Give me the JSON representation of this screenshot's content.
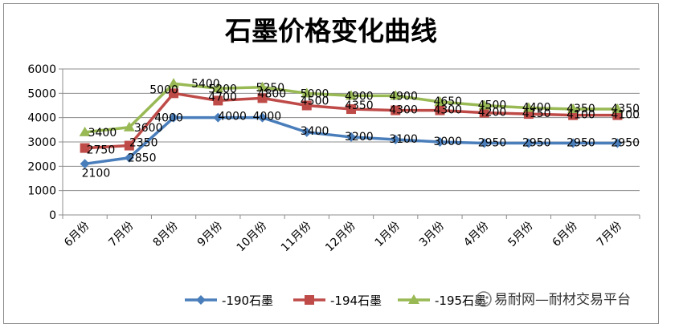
{
  "chart_data": {
    "type": "line",
    "title": "石墨价格变化曲线",
    "categories": [
      "6月份",
      "7月份",
      "8月份",
      "9月份",
      "10月份",
      "11月份",
      "12月份",
      "1月份",
      "3月份",
      "4月份",
      "5月份",
      "6月份",
      "7月份"
    ],
    "series": [
      {
        "name": "-190石墨",
        "color": "#4a7ebb",
        "marker": "diamond",
        "values": [
          2100,
          2350,
          4000,
          4000,
          4000,
          3400,
          3200,
          3100,
          3000,
          2950,
          2950,
          2950,
          2950
        ],
        "labels": [
          "2100",
          "2350",
          "4000",
          "4000",
          "4000",
          "3400",
          "3200",
          "3100",
          "3000",
          "2950",
          "2950",
          "2950",
          "2950"
        ]
      },
      {
        "name": "-194石墨",
        "color": "#be4b48",
        "marker": "square",
        "values": [
          2750,
          2850,
          5000,
          4700,
          4800,
          4500,
          4350,
          4300,
          4300,
          4200,
          4150,
          4100,
          4100
        ],
        "labels": [
          "2750",
          "2850",
          "5000",
          "4700",
          "4800",
          "4500",
          "4350",
          "4300",
          "4300",
          "4200",
          "4150",
          "4100",
          "4100"
        ]
      },
      {
        "name": "-195石墨",
        "color": "#98b954",
        "marker": "triangle",
        "values": [
          3400,
          3600,
          5400,
          5200,
          5250,
          5000,
          4900,
          4900,
          4650,
          4500,
          4400,
          4350,
          4350
        ],
        "labels": [
          "3400",
          "3600",
          "5400",
          "5200",
          "5250",
          "5000",
          "4900",
          "4900",
          "4650",
          "4500",
          "4400",
          "4350",
          "4350"
        ]
      }
    ],
    "ylim": [
      0,
      6000
    ],
    "yticks": [
      0,
      1000,
      2000,
      3000,
      4000,
      5000,
      6000
    ],
    "grid": true,
    "legend_position": "bottom"
  },
  "watermark": {
    "icon": "wechat-icon",
    "text": "易耐网—耐材交易平台"
  }
}
